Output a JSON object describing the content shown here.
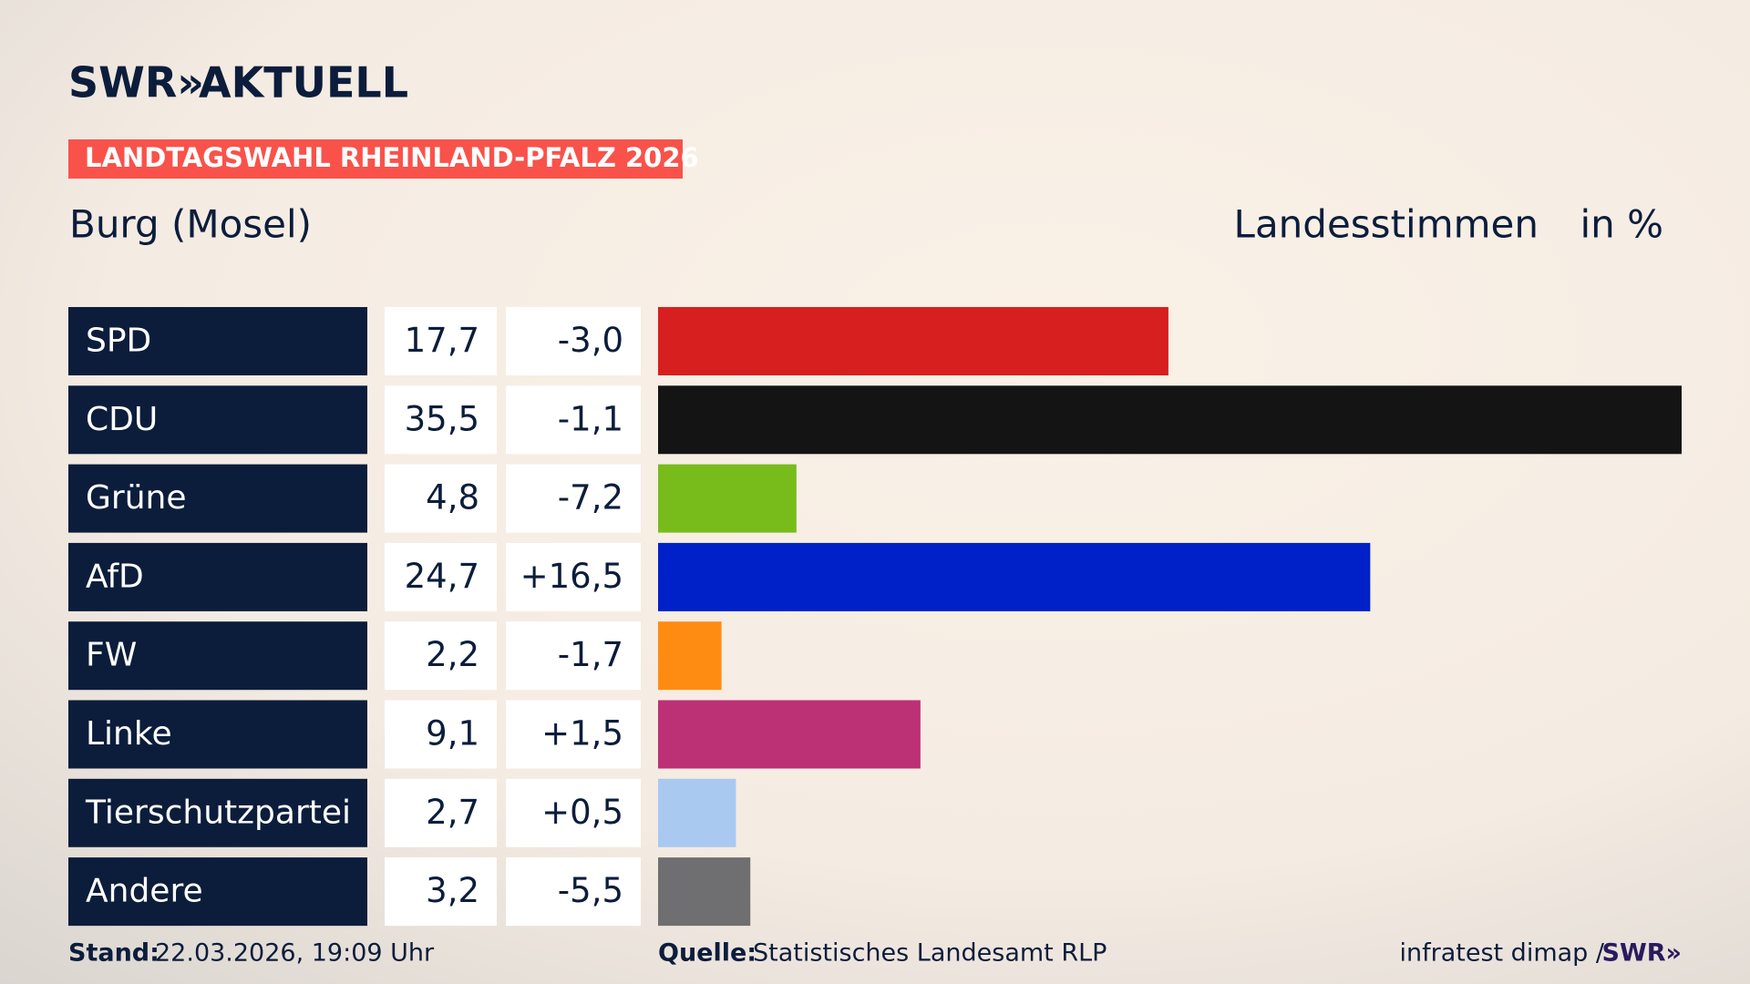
{
  "header": {
    "brand": "SWR»",
    "brand_suffix": "AKTUELL",
    "badge": "LANDTAGSWAHL RHEINLAND-PFALZ 2026"
  },
  "chart_data": {
    "type": "bar",
    "title": "Burg (Mosel)",
    "subtitle": "Landesstimmen",
    "unit": "in %",
    "categories": [
      "SPD",
      "CDU",
      "Grüne",
      "AfD",
      "FW",
      "Linke",
      "Tierschutzpartei",
      "Andere"
    ],
    "values": [
      17.7,
      35.5,
      4.8,
      24.7,
      2.2,
      9.1,
      2.7,
      3.2
    ],
    "value_labels": [
      "17,7",
      "35,5",
      "4,8",
      "24,7",
      "2,2",
      "9,1",
      "2,7",
      "3,2"
    ],
    "changes": [
      "-3,0",
      "-1,1",
      "-7,2",
      "+16,5",
      "-1,7",
      "+1,5",
      "+0,5",
      "-5,5"
    ],
    "colors": [
      "#d81f1f",
      "#141414",
      "#78bc1b",
      "#0021c8",
      "#ff8c12",
      "#bc3076",
      "#a9c9f1",
      "#6f6f71"
    ]
  },
  "footer": {
    "stand_label": "Stand:",
    "stand": "22.03.2026, 19:09 Uhr",
    "source_label": "Quelle:",
    "source": "Statistisches Landesamt RLP",
    "pollster": "infratest dimap /",
    "brand": "SWR»"
  }
}
